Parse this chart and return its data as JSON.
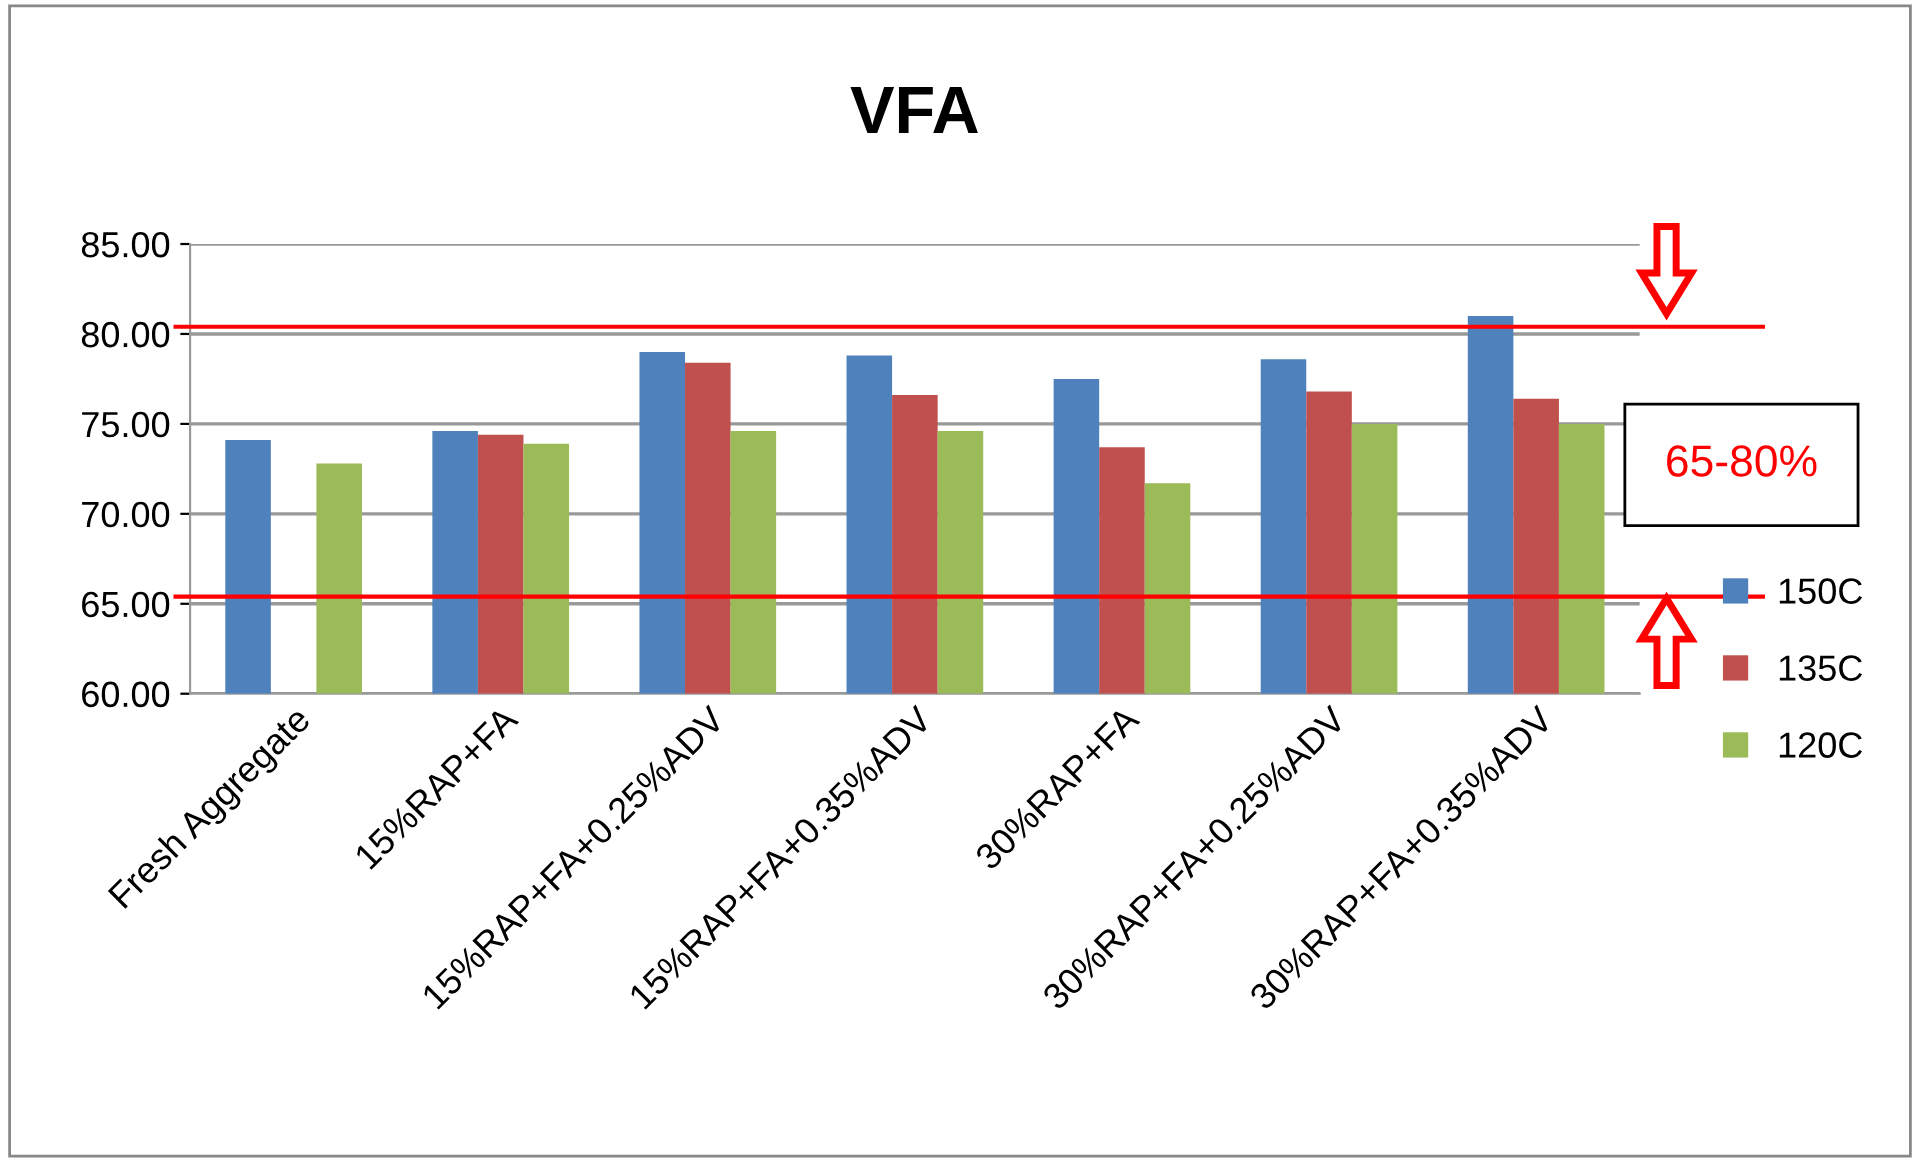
{
  "chart_data": {
    "type": "bar",
    "title": "VFA",
    "categories": [
      "Fresh Aggregate",
      "15%RAP+FA",
      "15%RAP+FA+0.25%ADV",
      "15%RAP+FA+0.35%ADV",
      "30%RAP+FA",
      "30%RAP+FA+0.25%ADV",
      "30%RAP+FA+0.35%ADV"
    ],
    "series": [
      {
        "name": "150C",
        "color": "#4f81bd",
        "values": [
          74.1,
          74.6,
          79.0,
          78.8,
          77.5,
          78.6,
          81.0
        ]
      },
      {
        "name": "135C",
        "color": "#c0504d",
        "values": [
          null,
          74.4,
          78.4,
          76.6,
          73.7,
          76.8,
          76.4
        ]
      },
      {
        "name": "120C",
        "color": "#9bbb59",
        "values": [
          72.8,
          73.9,
          74.6,
          74.6,
          71.7,
          75.0,
          75.0
        ]
      }
    ],
    "ylim": [
      60,
      85
    ],
    "yticks": [
      {
        "value": 60,
        "label": "60.00"
      },
      {
        "value": 65,
        "label": "65.00"
      },
      {
        "value": 70,
        "label": "70.00"
      },
      {
        "value": 75,
        "label": "75.00"
      },
      {
        "value": 80,
        "label": "80.00"
      },
      {
        "value": 85,
        "label": "85.00"
      }
    ],
    "grid": "y",
    "legend": "right",
    "ref_lines": [
      {
        "axis": "y",
        "value": 80.4,
        "color": "#ff0000"
      },
      {
        "axis": "y",
        "value": 65.4,
        "color": "#ff0000"
      }
    ],
    "annotations": [
      "65-80%"
    ]
  }
}
